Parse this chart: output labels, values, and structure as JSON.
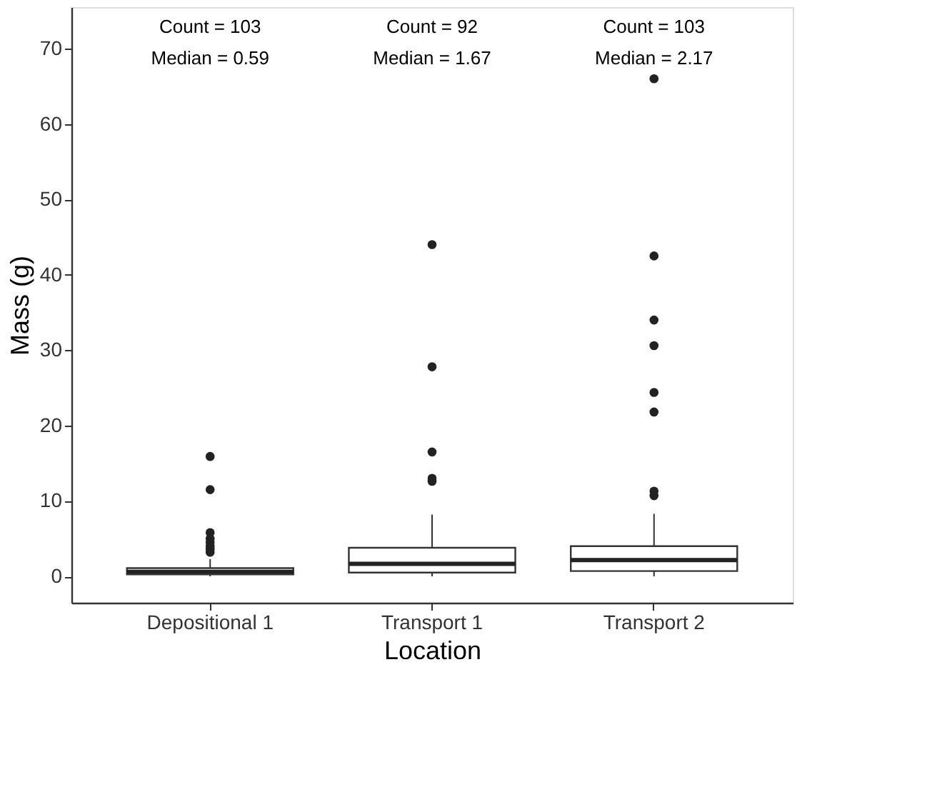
{
  "chart_data": {
    "type": "box",
    "xlabel": "Location",
    "ylabel": "Mass (g)",
    "categories": [
      "Depositional 1",
      "Transport 1",
      "Transport 2"
    ],
    "boxes": [
      {
        "low": 0,
        "q1": 0.25,
        "median": 0.59,
        "q3": 1.1,
        "high": 2.3,
        "outliers": [
          15.9,
          11.5,
          5.8,
          5.0,
          4.5,
          4.0,
          3.6,
          3.2
        ]
      },
      {
        "low": 0,
        "q1": 0.5,
        "median": 1.67,
        "q3": 3.8,
        "high": 8.2,
        "outliers": [
          44,
          27.8,
          16.5,
          13.0,
          12.6
        ]
      },
      {
        "low": 0,
        "q1": 0.7,
        "median": 2.17,
        "q3": 4.0,
        "high": 8.3,
        "outliers": [
          66,
          42.5,
          34,
          30.6,
          24.4,
          21.8,
          11.3,
          10.7
        ]
      }
    ],
    "ylim": [
      -3.5,
      75.5
    ],
    "yticks": [
      0,
      10,
      20,
      30,
      40,
      50,
      60,
      70
    ],
    "grid": false,
    "annotations": [
      "Count = 103\nMedian = 0.59",
      "Count = 92\nMedian = 1.67",
      "Count = 103\nMedian = 2.17"
    ]
  }
}
